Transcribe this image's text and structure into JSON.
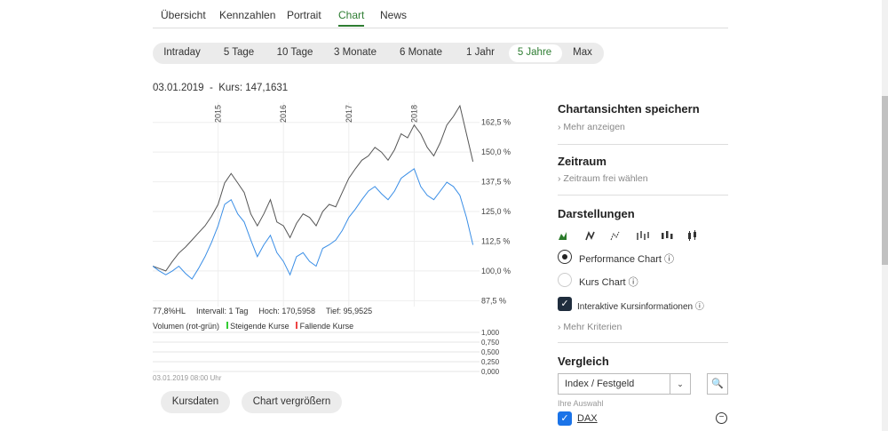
{
  "tabs": [
    "Übersicht",
    "Kennzahlen",
    "Portrait",
    "Chart",
    "News"
  ],
  "active_tab": 3,
  "ranges": [
    "Intraday",
    "5 Tage",
    "10 Tage",
    "3 Monate",
    "6 Monate",
    "1 Jahr",
    "5 Jahre",
    "Max"
  ],
  "active_range": 6,
  "info": {
    "date": "03.01.2019",
    "kurs": "Kurs: 147,1631"
  },
  "chart_data": {
    "type": "line",
    "x": [
      2014.0,
      2014.1,
      2014.2,
      2014.3,
      2014.4,
      2014.5,
      2014.6,
      2014.7,
      2014.8,
      2014.9,
      2015.0,
      2015.1,
      2015.2,
      2015.3,
      2015.4,
      2015.5,
      2015.6,
      2015.7,
      2015.8,
      2015.9,
      2016.0,
      2016.1,
      2016.2,
      2016.3,
      2016.4,
      2016.5,
      2016.6,
      2016.7,
      2016.8,
      2016.9,
      2017.0,
      2017.1,
      2017.2,
      2017.3,
      2017.4,
      2017.5,
      2017.6,
      2017.7,
      2017.8,
      2017.9,
      2018.0,
      2018.1,
      2018.2,
      2018.3,
      2018.4,
      2018.5,
      2018.6,
      2018.7,
      2018.8,
      2018.9
    ],
    "xlim": [
      2014,
      2019
    ],
    "xticks": [
      2015,
      2016,
      2017,
      2018
    ],
    "ylim": [
      85,
      171
    ],
    "yticks": [
      {
        "value": 87.5,
        "label": "87,5 %"
      },
      {
        "value": 100,
        "label": "100,0 %"
      },
      {
        "value": 112.5,
        "label": "112,5 %"
      },
      {
        "value": 125,
        "label": "125,0 %"
      },
      {
        "value": 137.5,
        "label": "137,5 %"
      },
      {
        "value": 150,
        "label": "150,0 %"
      },
      {
        "value": 162.5,
        "label": "162,5 %"
      }
    ],
    "grid": true,
    "series": [
      {
        "name": "Kurs",
        "color": "#555555",
        "values": [
          102,
          101,
          100,
          104,
          107.5,
          110,
          113,
          116,
          119,
          123,
          128,
          137,
          141,
          137,
          133,
          124,
          119,
          124,
          130,
          120.6,
          119,
          114,
          120,
          124,
          122.5,
          119,
          125,
          128,
          127,
          133,
          139,
          143,
          146.6,
          148.4,
          152,
          150,
          146.6,
          151,
          157.7,
          156,
          161.4,
          157.7,
          152,
          148.4,
          154,
          161.4,
          165,
          169.5,
          157.7,
          146
        ]
      },
      {
        "name": "DAX",
        "color": "#3a8ee6",
        "values": [
          102,
          100,
          98.4,
          100,
          102,
          99,
          96.6,
          101,
          106,
          112,
          119,
          128,
          130,
          124,
          120.6,
          113,
          106,
          111,
          115,
          107.7,
          104,
          98.4,
          106,
          107.7,
          104,
          102,
          109.5,
          111,
          113,
          117,
          122.5,
          126,
          130,
          133.6,
          135.5,
          132.5,
          130,
          133.6,
          139,
          141,
          143,
          135.5,
          131.8,
          130,
          133.6,
          137.3,
          135.5,
          131.8,
          122.5,
          111
        ]
      }
    ]
  },
  "stats": [
    "77,8%HL",
    "Intervall: 1 Tag",
    "Hoch: 170,5958",
    "Tief: 95,9525"
  ],
  "volume": {
    "title": "Volumen (rot-grün)",
    "rising": "Steigende Kurse",
    "falling": "Fallende Kurse",
    "ylim": [
      0,
      1
    ],
    "yticks": [
      {
        "value": 1,
        "label": "1,000"
      },
      {
        "value": 0.75,
        "label": "0,750"
      },
      {
        "value": 0.5,
        "label": "0,500"
      },
      {
        "value": 0.25,
        "label": "0,250"
      },
      {
        "value": 0,
        "label": "0,000"
      }
    ]
  },
  "timestamp": "03.01.2019 08:00 Uhr",
  "buttons": [
    "Kursdaten",
    "Chart vergrößern"
  ],
  "sidebar": {
    "save": {
      "title": "Chartansichten speichern",
      "link": "Mehr anzeigen"
    },
    "period": {
      "title": "Zeitraum",
      "link": "Zeitraum frei wählen"
    },
    "views": {
      "title": "Darstellungen",
      "performance": "Performance Chart",
      "kurs": "Kurs Chart",
      "interactive": "Interaktive Kursinformationen",
      "more": "Mehr Kriterien"
    },
    "compare": {
      "title": "Vergleich",
      "select": "Index / Festgeld",
      "label": "Ihre Auswahl",
      "item": "DAX"
    }
  }
}
